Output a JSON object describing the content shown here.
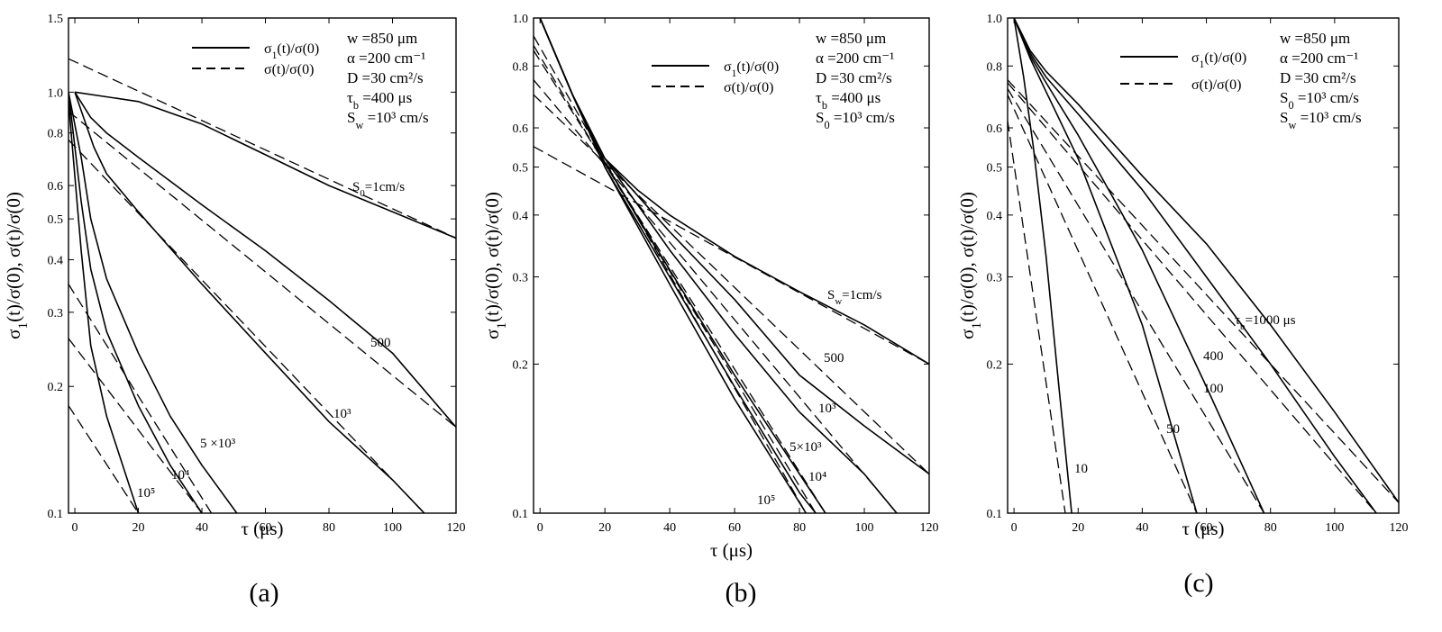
{
  "figure": {
    "panels": [
      {
        "panel_label": "(a)",
        "params": [
          "w =850 μm",
          "α =200 cm⁻¹",
          "D =30 cm²/s",
          "τb =400 μs",
          "Sw =10³ cm/s"
        ],
        "legend": {
          "solid": "σ1(t)/σ(0)",
          "dashed": "σ(t)/σ(0)"
        }
      },
      {
        "panel_label": "(b)",
        "params": [
          "w =850 μm",
          "α =200 cm⁻¹",
          "D =30 cm²/s",
          "τb =400 μs",
          "S0 =10³ cm/s"
        ],
        "legend": {
          "solid": "σ1(t)/σ(0)",
          "dashed": "σ(t)/σ(0)"
        }
      },
      {
        "panel_label": "(c)",
        "params": [
          "w =850 μm",
          "α =200 cm⁻¹",
          "D =30 cm²/s",
          "S0 =10³ cm/s",
          "Sw =10³ cm/s"
        ],
        "legend": {
          "solid": "σ1(t)/σ(0)",
          "dashed": "σ(t)/σ(0)"
        }
      }
    ]
  },
  "chart_data": [
    {
      "type": "line",
      "xlabel": "τ (μs)",
      "ylabel": "σ1(t)/σ(0), σ(t)/σ(0)",
      "xlim": [
        -2,
        120
      ],
      "ylim": [
        0.1,
        1.5
      ],
      "yscale": "log",
      "xticks": [
        0,
        20,
        40,
        60,
        80,
        100,
        120
      ],
      "yticks": [
        0.1,
        0.2,
        0.3,
        0.4,
        0.5,
        0.6,
        0.8,
        1.0,
        1.5
      ],
      "ytick_labels": [
        "0.1",
        "0.2",
        "0.3",
        "0.4",
        "0.5",
        "0.6",
        "0.8",
        "1.0",
        "1.5"
      ],
      "series": [
        {
          "name": "S0=1cm/s",
          "style": "solid",
          "x": [
            0,
            20,
            40,
            60,
            80,
            100,
            120
          ],
          "y": [
            1.0,
            0.95,
            0.84,
            0.71,
            0.6,
            0.52,
            0.45
          ]
        },
        {
          "name": "S0=1cm/s",
          "style": "dashed",
          "x": [
            -2,
            120
          ],
          "y": [
            1.2,
            0.45
          ]
        },
        {
          "name": "500",
          "style": "solid",
          "x": [
            0,
            5,
            10,
            20,
            40,
            60,
            80,
            100,
            120
          ],
          "y": [
            1.0,
            0.87,
            0.8,
            0.7,
            0.54,
            0.42,
            0.32,
            0.24,
            0.16
          ]
        },
        {
          "name": "500",
          "style": "dashed",
          "x": [
            -2,
            120
          ],
          "y": [
            0.9,
            0.16
          ]
        },
        {
          "name": "10³",
          "style": "solid",
          "x": [
            0,
            3,
            6,
            10,
            20,
            40,
            60,
            80,
            100,
            110
          ],
          "y": [
            1.0,
            0.86,
            0.74,
            0.64,
            0.52,
            0.35,
            0.24,
            0.165,
            0.12,
            0.1
          ]
        },
        {
          "name": "10³",
          "style": "dashed",
          "x": [
            -2,
            110
          ],
          "y": [
            0.77,
            0.1
          ]
        },
        {
          "name": "5 ×10³",
          "style": "solid",
          "x": [
            -2,
            2,
            5,
            10,
            20,
            30,
            40,
            51
          ],
          "y": [
            1.0,
            0.7,
            0.5,
            0.36,
            0.24,
            0.17,
            0.13,
            0.1
          ]
        },
        {
          "name": "5 ×10³",
          "style": "dashed",
          "x": [
            -2,
            43
          ],
          "y": [
            0.35,
            0.1
          ]
        },
        {
          "name": "10⁴",
          "style": "solid",
          "x": [
            -2,
            2,
            5,
            10,
            20,
            30,
            40
          ],
          "y": [
            1.0,
            0.55,
            0.38,
            0.27,
            0.18,
            0.13,
            0.1
          ]
        },
        {
          "name": "10⁴",
          "style": "dashed",
          "x": [
            -2,
            40
          ],
          "y": [
            0.26,
            0.1
          ]
        },
        {
          "name": "10⁵",
          "style": "solid",
          "x": [
            -2,
            2,
            5,
            10,
            20
          ],
          "y": [
            0.95,
            0.42,
            0.25,
            0.17,
            0.1
          ]
        },
        {
          "name": "10⁵",
          "style": "dashed",
          "x": [
            -2,
            20
          ],
          "y": [
            0.18,
            0.1
          ]
        }
      ]
    },
    {
      "type": "line",
      "xlabel": "τ (μs)",
      "ylabel": "σ1(t)/σ(0), σ(t)/σ(0)",
      "xlim": [
        -2,
        120
      ],
      "ylim": [
        0.1,
        1.0
      ],
      "yscale": "log",
      "xticks": [
        0,
        20,
        40,
        60,
        80,
        100,
        120
      ],
      "yticks": [
        0.1,
        0.2,
        0.3,
        0.4,
        0.5,
        0.6,
        0.8,
        1.0
      ],
      "ytick_labels": [
        "0.1",
        "0.2",
        "0.3",
        "0.4",
        "0.5",
        "0.6",
        "0.8",
        "1.0"
      ],
      "series": [
        {
          "name": "Sw=1cm/s",
          "style": "solid",
          "x": [
            0,
            10,
            20,
            30,
            40,
            60,
            80,
            100,
            120
          ],
          "y": [
            1.0,
            0.7,
            0.52,
            0.45,
            0.4,
            0.33,
            0.28,
            0.24,
            0.2
          ]
        },
        {
          "name": "Sw=1cm/s",
          "style": "dashed",
          "x": [
            -2,
            120
          ],
          "y": [
            0.55,
            0.2
          ]
        },
        {
          "name": "500",
          "style": "solid",
          "x": [
            0,
            10,
            20,
            40,
            60,
            80,
            100,
            120
          ],
          "y": [
            1.0,
            0.7,
            0.52,
            0.37,
            0.27,
            0.19,
            0.15,
            0.12
          ]
        },
        {
          "name": "500",
          "style": "dashed",
          "x": [
            -2,
            120
          ],
          "y": [
            0.7,
            0.12
          ]
        },
        {
          "name": "10³",
          "style": "solid",
          "x": [
            0,
            10,
            20,
            40,
            60,
            80,
            100,
            110
          ],
          "y": [
            1.0,
            0.7,
            0.52,
            0.34,
            0.23,
            0.16,
            0.12,
            0.1
          ]
        },
        {
          "name": "10³",
          "style": "dashed",
          "x": [
            -2,
            110
          ],
          "y": [
            0.75,
            0.1
          ]
        },
        {
          "name": "5×10³",
          "style": "solid",
          "x": [
            0,
            10,
            20,
            40,
            60,
            80,
            88
          ],
          "y": [
            1.0,
            0.7,
            0.51,
            0.31,
            0.19,
            0.12,
            0.1
          ]
        },
        {
          "name": "5×10³",
          "style": "dashed",
          "x": [
            -2,
            88
          ],
          "y": [
            0.86,
            0.1
          ]
        },
        {
          "name": "10⁴",
          "style": "solid",
          "x": [
            0,
            10,
            20,
            40,
            60,
            80,
            85
          ],
          "y": [
            1.0,
            0.7,
            0.5,
            0.3,
            0.18,
            0.11,
            0.1
          ]
        },
        {
          "name": "10⁴",
          "style": "dashed",
          "x": [
            -2,
            85
          ],
          "y": [
            0.88,
            0.1
          ]
        },
        {
          "name": "10⁵",
          "style": "solid",
          "x": [
            0,
            10,
            20,
            40,
            60,
            80,
            82
          ],
          "y": [
            1.0,
            0.7,
            0.5,
            0.29,
            0.17,
            0.105,
            0.1
          ]
        },
        {
          "name": "10⁵",
          "style": "dashed",
          "x": [
            -2,
            82
          ],
          "y": [
            0.92,
            0.1
          ]
        }
      ]
    },
    {
      "type": "line",
      "xlabel": "τ (μs)",
      "ylabel": "σ1(t)/σ(0), σ(t)/σ(0)",
      "xlim": [
        -2,
        120
      ],
      "ylim": [
        0.1,
        1.0
      ],
      "yscale": "log",
      "xticks": [
        0,
        20,
        40,
        60,
        80,
        100,
        120
      ],
      "yticks": [
        0.1,
        0.2,
        0.3,
        0.4,
        0.5,
        0.6,
        0.8,
        1.0
      ],
      "ytick_labels": [
        "0.1",
        "0.2",
        "0.3",
        "0.4",
        "0.5",
        "0.6",
        "0.8",
        "1.0"
      ],
      "series": [
        {
          "name": "τb=1000 μs",
          "style": "solid",
          "x": [
            0,
            5,
            10,
            20,
            40,
            60,
            80,
            100,
            120
          ],
          "y": [
            1.0,
            0.86,
            0.78,
            0.67,
            0.48,
            0.35,
            0.24,
            0.16,
            0.105
          ]
        },
        {
          "name": "τb=1000 μs",
          "style": "dashed",
          "x": [
            -2,
            120
          ],
          "y": [
            0.75,
            0.105
          ]
        },
        {
          "name": "400",
          "style": "solid",
          "x": [
            0,
            5,
            10,
            20,
            40,
            60,
            80,
            100,
            113
          ],
          "y": [
            1.0,
            0.85,
            0.76,
            0.64,
            0.45,
            0.3,
            0.2,
            0.13,
            0.1
          ]
        },
        {
          "name": "400",
          "style": "dashed",
          "x": [
            -2,
            113
          ],
          "y": [
            0.74,
            0.1
          ]
        },
        {
          "name": "100",
          "style": "solid",
          "x": [
            0,
            5,
            10,
            20,
            40,
            60,
            78
          ],
          "y": [
            1.0,
            0.84,
            0.74,
            0.58,
            0.34,
            0.18,
            0.1
          ]
        },
        {
          "name": "100",
          "style": "dashed",
          "x": [
            -2,
            78
          ],
          "y": [
            0.72,
            0.1
          ]
        },
        {
          "name": "50",
          "style": "solid",
          "x": [
            0,
            5,
            10,
            20,
            40,
            57
          ],
          "y": [
            1.0,
            0.83,
            0.71,
            0.52,
            0.24,
            0.1
          ]
        },
        {
          "name": "50",
          "style": "dashed",
          "x": [
            -2,
            57
          ],
          "y": [
            0.7,
            0.1
          ]
        },
        {
          "name": "10",
          "style": "solid",
          "x": [
            0,
            3,
            6,
            10,
            14,
            18
          ],
          "y": [
            1.0,
            0.76,
            0.55,
            0.33,
            0.18,
            0.1
          ]
        },
        {
          "name": "10",
          "style": "dashed",
          "x": [
            -2,
            16
          ],
          "y": [
            0.62,
            0.1
          ]
        }
      ]
    }
  ]
}
